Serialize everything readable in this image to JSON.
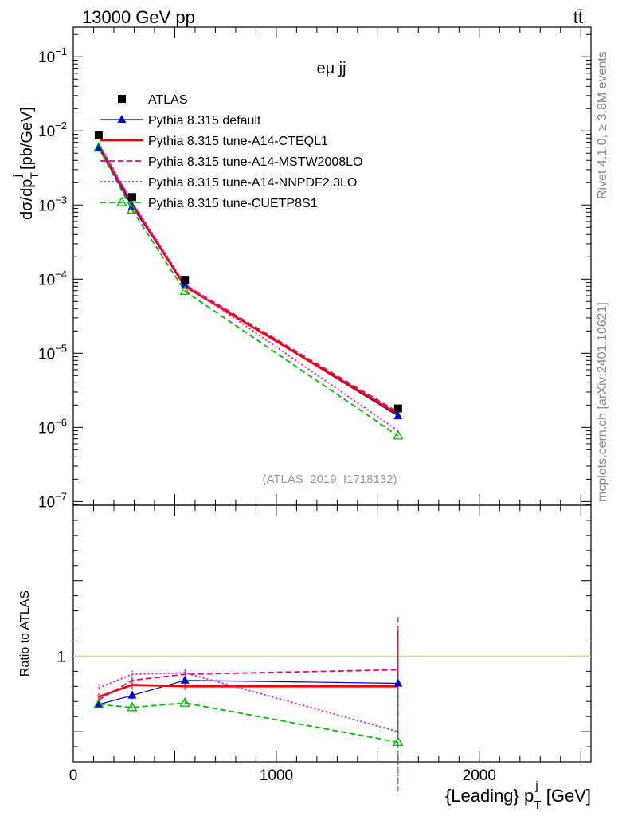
{
  "header": {
    "energy_label": "13000 GeV pp",
    "process_label": "tt̄"
  },
  "side_labels": {
    "rivet": "Rivet 4.1.0, ≥ 3.8M events",
    "mcplots": "mcplots.cern.ch [arXiv:2401.10621]"
  },
  "chart_data": {
    "type": "line",
    "title": "eμ jj",
    "analysis_tag": "(ATLAS_2019_I1718132)",
    "xlabel_main": "{Leading} p",
    "xlabel_sub": "T",
    "xlabel_sup": "j",
    "xlabel_unit": "[GeV]",
    "ylabel_main": "dσ/dp",
    "ylabel_sub": "T",
    "ylabel_sup": "j",
    "ylabel_unit": "[pb/GeV]",
    "ratio_ylabel": "Ratio to ATLAS",
    "x_range": [
      0,
      2550
    ],
    "y_range_log10": [
      -7.05,
      -0.6
    ],
    "ratio_range": [
      0.3,
      2.0
    ],
    "x_ticks": [
      0,
      1000,
      2000
    ],
    "x_tick_labels": [
      "0",
      "1000",
      "2000"
    ],
    "y_ticks_log10": [
      -7,
      -6,
      -5,
      -4,
      -3,
      -2,
      -1
    ],
    "y_tick_labels": [
      "10",
      "10",
      "10",
      "10",
      "10",
      "10",
      "10"
    ],
    "y_tick_exponents": [
      "−7",
      "−6",
      "−5",
      "−4",
      "−3",
      "−2",
      "−1"
    ],
    "ratio_ticks": [
      1
    ],
    "ratio_tick_labels": [
      "1"
    ],
    "x": [
      125,
      290,
      550,
      1600
    ],
    "data": {
      "name": "ATLAS",
      "values": [
        0.0087,
        0.00128,
        9.8e-05,
        1.8e-06
      ]
    },
    "series": [
      {
        "name": "Pythia 8.315 default",
        "color": "#0000cc",
        "style": "solid",
        "marker": "filled-triangle",
        "values": [
          0.0059,
          0.00095,
          8.2e-05,
          1.42e-06
        ],
        "ratio": [
          0.68,
          0.74,
          0.84,
          0.82
        ]
      },
      {
        "name": "Pythia 8.315 tune-A14-CTEQL1",
        "color": "#ee0000",
        "style": "thick",
        "marker": "none",
        "values": [
          0.0064,
          0.00104,
          8e-05,
          1.5e-06
        ],
        "ratio": [
          0.73,
          0.81,
          0.8,
          0.8
        ]
      },
      {
        "name": "Pythia 8.315 tune-A14-MSTW2008LO",
        "color": "#ee0077",
        "style": "dashed",
        "marker": "none",
        "values": [
          0.0063,
          0.00106,
          8.4e-05,
          1.6e-06
        ],
        "ratio": [
          0.71,
          0.84,
          0.88,
          0.91
        ]
      },
      {
        "name": "Pythia 8.315 tune-A14-NNPDF2.3LO",
        "color": "#ff00cc",
        "style": "dotted",
        "marker": "none",
        "values": [
          0.0068,
          0.00111,
          8.6e-05,
          9e-07
        ],
        "ratio": [
          0.79,
          0.88,
          0.89,
          0.5
        ]
      },
      {
        "name": "Pythia 8.315 tune-CUETP8S1",
        "color": "#00bb00",
        "style": "dashed",
        "marker": "open-triangle",
        "values": [
          0.0059,
          0.00086,
          6.9e-05,
          7.7e-07
        ],
        "ratio": [
          0.68,
          0.66,
          0.69,
          0.43
        ]
      }
    ],
    "legend": {
      "placement": "top-left",
      "entries": [
        "ATLAS",
        "Pythia 8.315 default",
        "Pythia 8.315 tune-A14-CTEQL1",
        "Pythia 8.315 tune-A14-MSTW2008LO",
        "Pythia 8.315 tune-A14-NNPDF2.3LO",
        "Pythia 8.315 tune-CUETP8S1"
      ]
    }
  }
}
